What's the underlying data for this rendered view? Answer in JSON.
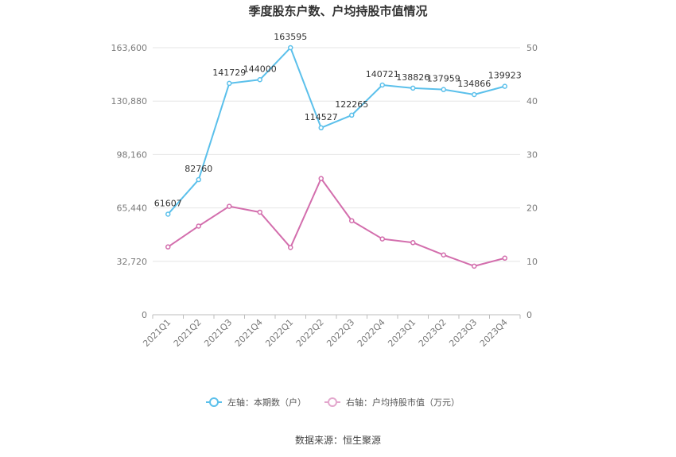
{
  "chart_data": {
    "type": "line",
    "title": "季度股东户数、户均持股市值情况",
    "categories": [
      "2021Q1",
      "2021Q2",
      "2021Q3",
      "2021Q4",
      "2022Q1",
      "2022Q2",
      "2022Q3",
      "2022Q4",
      "2023Q1",
      "2023Q2",
      "2023Q3",
      "2023Q4"
    ],
    "left_axis": {
      "min": 0,
      "max": 163600,
      "ticks": [
        0,
        32720,
        65440,
        98160,
        130880,
        163600
      ],
      "tick_labels": [
        "0",
        "32,720",
        "65,440",
        "98,160",
        "130,880",
        "163,600"
      ]
    },
    "right_axis": {
      "min": 0,
      "max": 50,
      "ticks": [
        0,
        10,
        20,
        30,
        40,
        50
      ],
      "tick_labels": [
        "0",
        "10",
        "20",
        "30",
        "40",
        "50"
      ]
    },
    "series": [
      {
        "name": "左轴：本期数（户）",
        "axis": "left",
        "color": "#5bc0eb",
        "values": [
          61607,
          82760,
          141729,
          144000,
          163595,
          114527,
          122265,
          140721,
          138826,
          137959,
          134866,
          139923
        ],
        "labels": [
          "61607",
          "82760",
          "141729",
          "144000",
          "163595",
          "114527",
          "122265",
          "140721",
          "138826",
          "137959",
          "134866",
          "139923"
        ]
      },
      {
        "name": "右轴：户均持股市值（万元）",
        "axis": "right",
        "color": "#d36ead",
        "values": [
          12.7,
          16.6,
          20.3,
          19.2,
          12.6,
          25.5,
          17.6,
          14.2,
          13.5,
          11.2,
          9.1,
          10.6
        ]
      }
    ],
    "legend_position": "bottom",
    "grid": true
  },
  "source": "数据来源：恒生聚源"
}
